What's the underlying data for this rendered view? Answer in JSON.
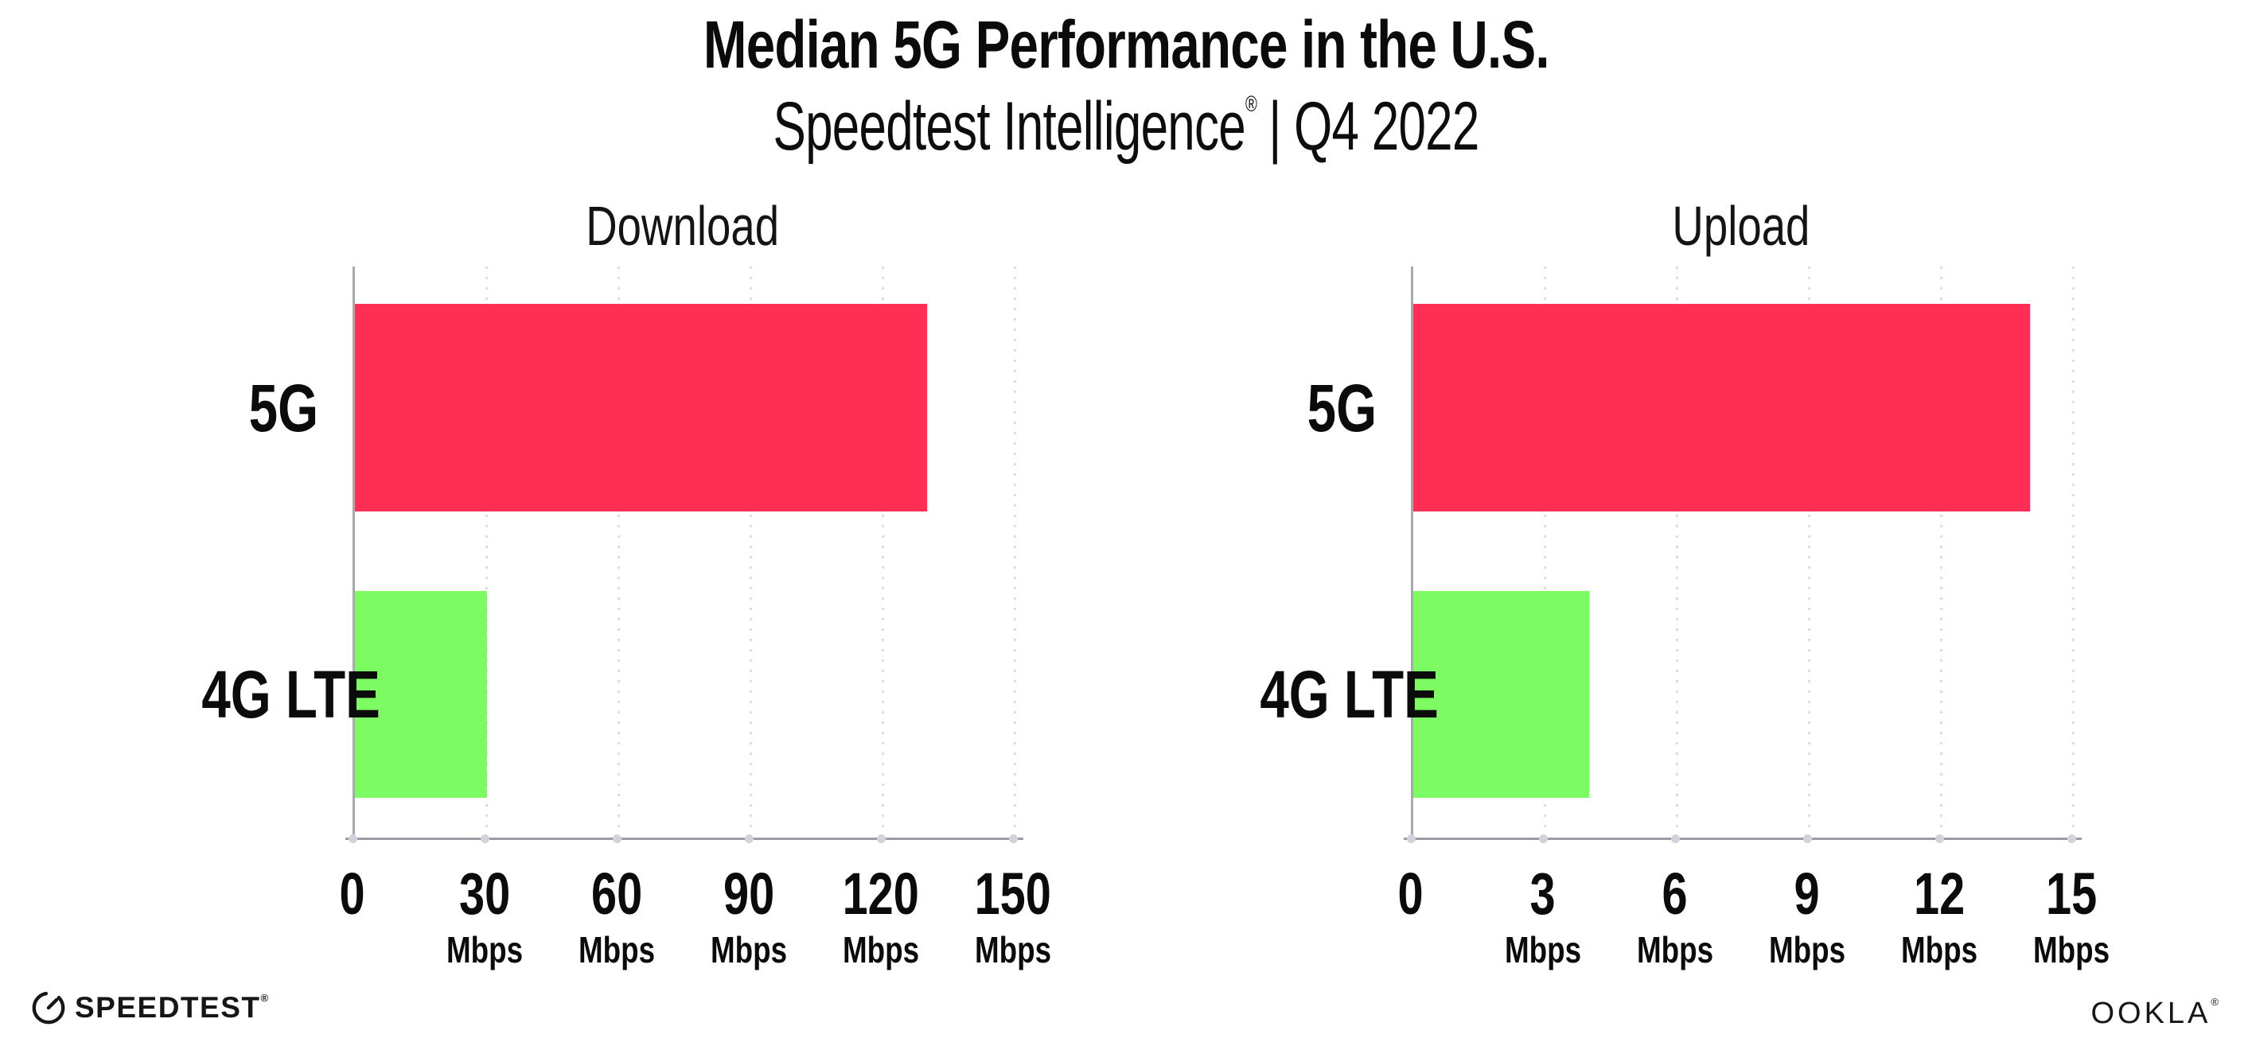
{
  "header": {
    "title": "Median 5G Performance in the U.S.",
    "subtitle_brand": "Speedtest Intelligence",
    "subtitle_regmark": "®",
    "subtitle_suffix": "| Q4 2022"
  },
  "footer": {
    "speedtest_label": "SPEEDTEST",
    "speedtest_regmark": "®",
    "ookla_label": "OOKLA",
    "ookla_regmark": "®"
  },
  "colors": {
    "bar_5g": "#FF2E55",
    "bar_4g_lte": "#7CFC62",
    "axis_line": "#9B9BA3",
    "gridline_dots": "#DCDCE6",
    "text": "#0B0B0B"
  },
  "chart_data": [
    {
      "type": "bar",
      "orientation": "horizontal",
      "title": "Download",
      "categories": [
        "5G",
        "4G LTE"
      ],
      "values": [
        130,
        30
      ],
      "unit": "Mbps",
      "xlim": [
        0,
        150
      ],
      "xticks": [
        0,
        30,
        60,
        90,
        120,
        150
      ],
      "bar_colors": [
        "#FF2E55",
        "#7CFC62"
      ],
      "grid": "vertical-dotted",
      "legend": "none"
    },
    {
      "type": "bar",
      "orientation": "horizontal",
      "title": "Upload",
      "categories": [
        "5G",
        "4G LTE"
      ],
      "values": [
        14,
        4
      ],
      "unit": "Mbps",
      "xlim": [
        0,
        15
      ],
      "xticks": [
        0,
        3,
        6,
        9,
        12,
        15
      ],
      "bar_colors": [
        "#FF2E55",
        "#7CFC62"
      ],
      "grid": "vertical-dotted",
      "legend": "none"
    }
  ]
}
